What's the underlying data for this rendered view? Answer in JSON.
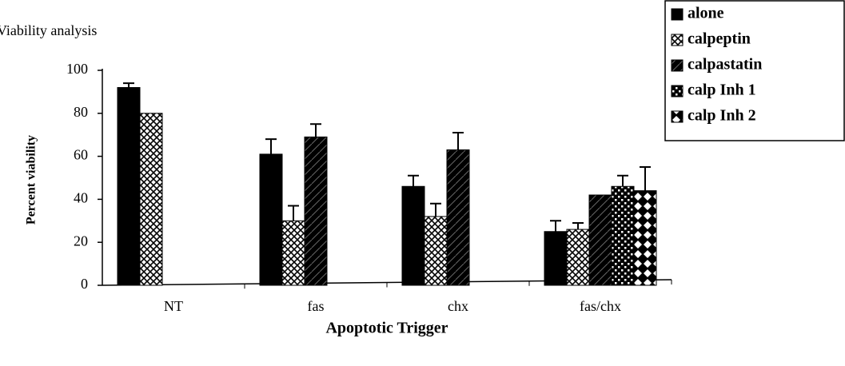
{
  "chart_data": {
    "type": "bar",
    "title": "Viability analysis",
    "x_label": "Apoptotic Trigger",
    "y_label": "Percent viability",
    "categories": [
      "NT",
      "fas",
      "chx",
      "fas/chx"
    ],
    "series": [
      {
        "name": "alone",
        "color": "#000000",
        "values": [
          92,
          61,
          46,
          25
        ],
        "errors": [
          2,
          7,
          5,
          5
        ]
      },
      {
        "name": "calpeptin",
        "color": "#000000",
        "values": [
          80,
          30,
          32,
          26
        ],
        "errors": [
          null,
          7,
          6,
          3
        ]
      },
      {
        "name": "calpastatin",
        "color": "#000000",
        "values": [
          null,
          69,
          63,
          42
        ],
        "errors": [
          null,
          6,
          8,
          null
        ]
      },
      {
        "name": "calp Inh 1",
        "color": "#000000",
        "values": [
          null,
          null,
          null,
          46
        ],
        "errors": [
          null,
          null,
          null,
          5
        ]
      },
      {
        "name": "calp Inh 2",
        "color": "#000000",
        "values": [
          null,
          null,
          null,
          44
        ],
        "errors": [
          null,
          null,
          null,
          11
        ]
      }
    ],
    "ylim": [
      0,
      100
    ],
    "yticks": [
      0,
      20,
      40,
      60,
      80,
      100
    ],
    "grid": false,
    "legend": "top-right"
  }
}
